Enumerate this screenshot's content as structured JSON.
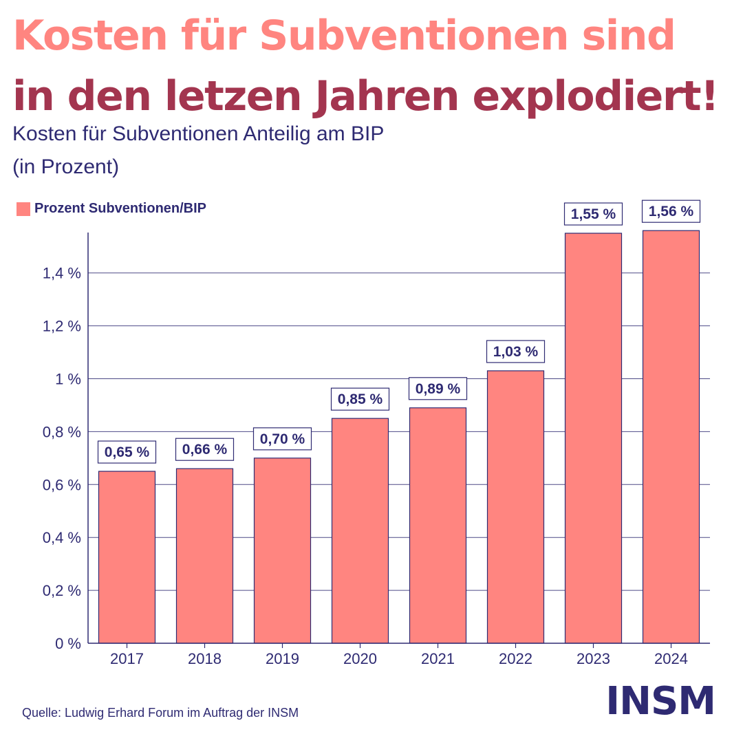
{
  "headline": {
    "line1": "Kosten für Subventionen sind",
    "line2": "in den letzen Jahren explodiert!"
  },
  "subtitle": {
    "line1": "Kosten für Subventionen Anteilig am BIP",
    "line2": "(in Prozent)"
  },
  "colors": {
    "accent": "#ff8580",
    "dark_accent": "#a3354f",
    "navy": "#2e2a72"
  },
  "chart_data": {
    "type": "bar",
    "categories": [
      "2017",
      "2018",
      "2019",
      "2020",
      "2021",
      "2022",
      "2023",
      "2024"
    ],
    "series": [
      {
        "name": "Prozent Subventionen/BIP",
        "values": [
          0.65,
          0.66,
          0.7,
          0.85,
          0.89,
          1.03,
          1.55,
          1.56
        ]
      }
    ],
    "data_labels": [
      "0,65 %",
      "0,66 %",
      "0,70 %",
      "0,85 %",
      "0,89 %",
      "1,03 %",
      "1,55 %",
      "1,56 %"
    ],
    "y_ticks": [
      0,
      0.2,
      0.4,
      0.6,
      0.8,
      1.0,
      1.2,
      1.4
    ],
    "y_tick_labels": [
      "0 %",
      "0,2 %",
      "0,4 %",
      "0,6 %",
      "0,8 %",
      "1 %",
      "1,2 %",
      "1,4 %"
    ],
    "ylim": [
      0,
      1.56
    ],
    "grid": true,
    "legend": "top-left",
    "bar_color": "#ff8580"
  },
  "source": "Quelle: Ludwig Erhard Forum im Auftrag der INSM",
  "logo_text": "INSM"
}
